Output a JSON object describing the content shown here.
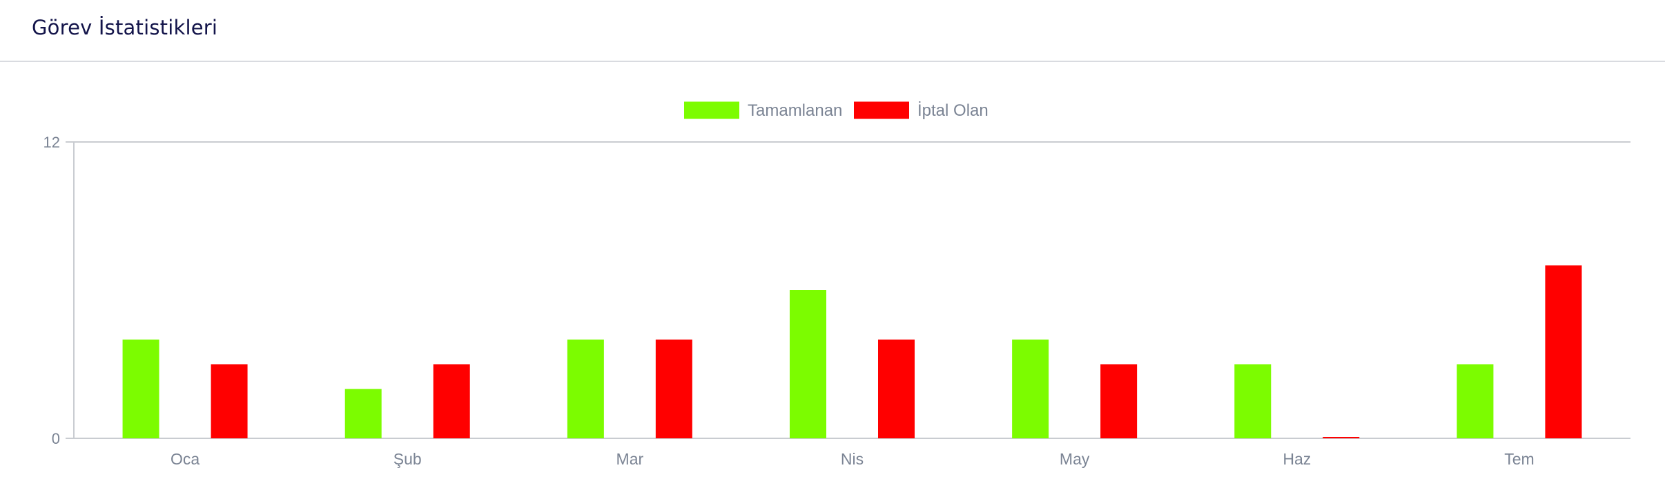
{
  "card": {
    "title": "Görev İstatistikleri"
  },
  "chart_data": {
    "type": "bar",
    "categories": [
      "Oca",
      "Şub",
      "Mar",
      "Nis",
      "May",
      "Haz",
      "Tem"
    ],
    "series": [
      {
        "name": "Tamamlanan",
        "values": [
          4,
          2,
          4,
          6,
          4,
          3,
          3
        ],
        "color": "#7cfc00"
      },
      {
        "name": "İptal Olan",
        "values": [
          3,
          3,
          4,
          4,
          3,
          0,
          7
        ],
        "color": "#ff0000"
      }
    ],
    "ylim": [
      0,
      12
    ],
    "yticks": [
      "0",
      "12"
    ],
    "grid": false,
    "legend": "top-center",
    "title": "",
    "xlabel": "",
    "ylabel": ""
  }
}
